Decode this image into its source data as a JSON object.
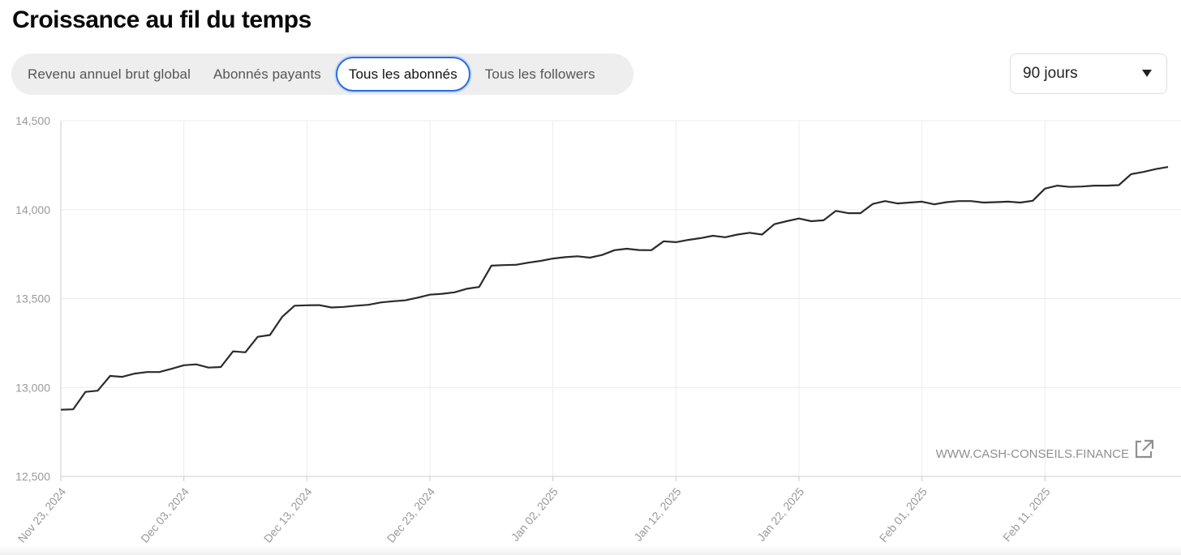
{
  "header": {
    "title": "Croissance au fil du temps"
  },
  "tabs": [
    {
      "label": "Revenu annuel brut global",
      "active": false
    },
    {
      "label": "Abonnés payants",
      "active": false
    },
    {
      "label": "Tous les abonnés",
      "active": true
    },
    {
      "label": "Tous les followers",
      "active": false
    }
  ],
  "period_select": {
    "value": "90 jours",
    "icon": "caret-down-icon"
  },
  "watermark": {
    "text": "WWW.CASH-CONSEILS.FINANCE",
    "icon": "external-link-icon"
  },
  "colors": {
    "line": "#2b2b2b",
    "grid": "#ececec",
    "axis": "#cccccc",
    "tick_text": "#9a9a9a",
    "active_tab_border": "#2b6de0"
  },
  "chart_data": {
    "type": "line",
    "title": "",
    "xlabel": "",
    "ylabel": "",
    "ylim": [
      12500,
      14500
    ],
    "yticks": [
      12500,
      13000,
      13500,
      14000,
      14500
    ],
    "ytick_labels": [
      "12,500",
      "13,000",
      "13,500",
      "14,000",
      "14,500"
    ],
    "xtick_labels": [
      "Nov 23, 2024",
      "Dec 03, 2024",
      "Dec 13, 2024",
      "Dec 23, 2024",
      "Jan 02, 2025",
      "Jan 12, 2025",
      "Jan 22, 2025",
      "Feb 01, 2025",
      "Feb 11, 2025"
    ],
    "grid": true,
    "series": [
      {
        "values": [
          12875,
          12877,
          12975,
          12982,
          13065,
          13060,
          13078,
          13087,
          13087,
          13105,
          13125,
          13130,
          13112,
          13115,
          13203,
          13198,
          13285,
          13295,
          13398,
          13460,
          13462,
          13463,
          13450,
          13453,
          13460,
          13465,
          13478,
          13485,
          13490,
          13505,
          13522,
          13527,
          13535,
          13555,
          13565,
          13685,
          13688,
          13690,
          13702,
          13712,
          13725,
          13733,
          13738,
          13730,
          13745,
          13772,
          13780,
          13773,
          13772,
          13822,
          13817,
          13830,
          13840,
          13853,
          13845,
          13860,
          13870,
          13860,
          13918,
          13935,
          13950,
          13935,
          13940,
          13993,
          13980,
          13980,
          14032,
          14048,
          14035,
          14040,
          14045,
          14030,
          14042,
          14048,
          14048,
          14040,
          14042,
          14045,
          14040,
          14050,
          14118,
          14135,
          14128,
          14130,
          14135,
          14135,
          14138,
          14200,
          14212,
          14228,
          14240
        ]
      }
    ]
  }
}
